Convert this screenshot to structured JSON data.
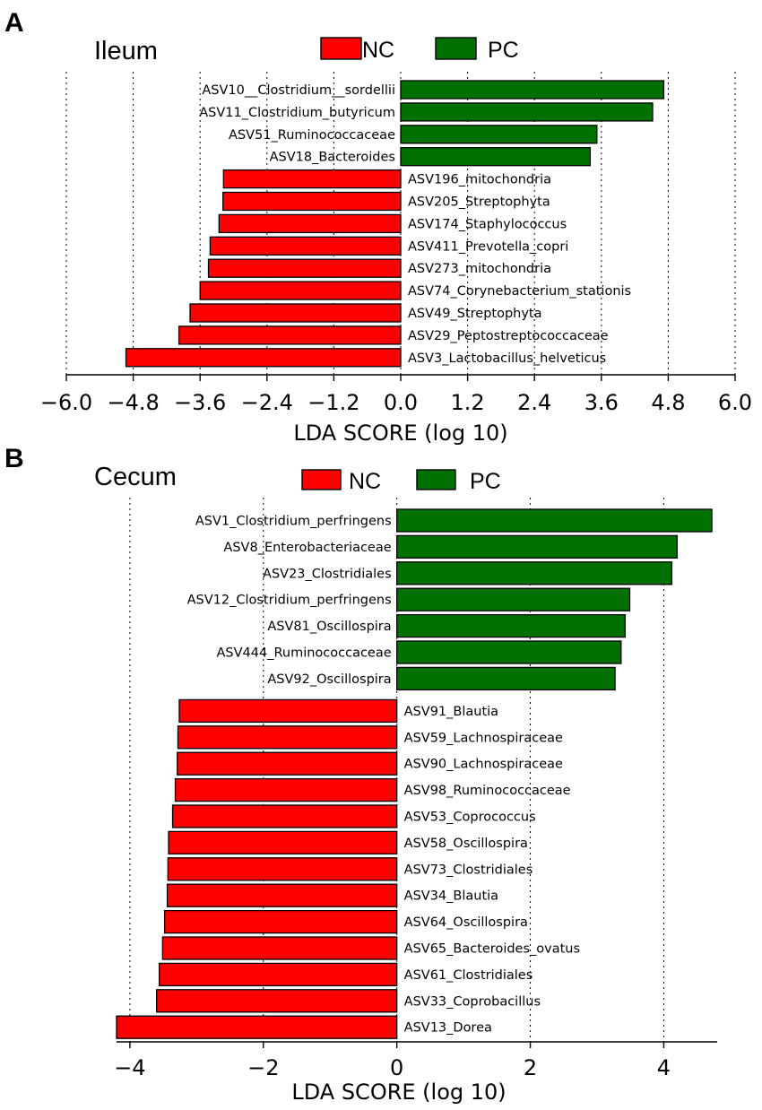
{
  "colors": {
    "NC": "#ff0000",
    "PC": "#007000"
  },
  "chart_data": [
    {
      "type": "bar",
      "panel": "A",
      "title": "Ileum",
      "orientation": "horizontal",
      "legend": [
        "NC",
        "PC"
      ],
      "xlabel": "LDA SCORE (log 10)",
      "xlim": [
        -6.0,
        6.0
      ],
      "xticks": [
        -6.0,
        -4.8,
        -3.6,
        -2.4,
        -1.2,
        0.0,
        1.2,
        2.4,
        3.6,
        4.8,
        6.0
      ],
      "xtick_labels": [
        "−6.0",
        "−4.8",
        "−3.6",
        "−2.4",
        "−1.2",
        "0.0",
        "1.2",
        "2.4",
        "3.6",
        "4.8",
        "6.0"
      ],
      "bars": [
        {
          "label": "ASV10__Clostridium__sordellii",
          "value": 4.72,
          "group": "PC"
        },
        {
          "label": "ASV11_Clostridium_butyricum",
          "value": 4.52,
          "group": "PC"
        },
        {
          "label": "ASV51_Ruminococcaceae",
          "value": 3.52,
          "group": "PC"
        },
        {
          "label": "ASV18_Bacteroides",
          "value": 3.4,
          "group": "PC"
        },
        {
          "label": "ASV196_mitochondria",
          "value": -3.18,
          "group": "NC"
        },
        {
          "label": "ASV205_Streptophyta",
          "value": -3.19,
          "group": "NC"
        },
        {
          "label": "ASV174_Staphylococcus",
          "value": -3.26,
          "group": "NC"
        },
        {
          "label": "ASV411_Prevotella_copri",
          "value": -3.42,
          "group": "NC"
        },
        {
          "label": "ASV273_mitochondria",
          "value": -3.45,
          "group": "NC"
        },
        {
          "label": "ASV74_Corynebacterium_stationis",
          "value": -3.6,
          "group": "NC"
        },
        {
          "label": "ASV49_Streptophyta",
          "value": -3.78,
          "group": "NC"
        },
        {
          "label": "ASV29_Peptostreptococcaceae",
          "value": -3.98,
          "group": "NC"
        },
        {
          "label": "ASV3_Lactobacillus_helveticus",
          "value": -4.93,
          "group": "NC"
        }
      ]
    },
    {
      "type": "bar",
      "panel": "B",
      "title": "Cecum",
      "orientation": "horizontal",
      "legend": [
        "NC",
        "PC"
      ],
      "xlabel": "LDA SCORE (log 10)",
      "xlim": [
        -4.2,
        4.8
      ],
      "xticks": [
        -4,
        -2,
        0,
        2,
        4
      ],
      "xtick_labels": [
        "−4",
        "−2",
        "0",
        "2",
        "4"
      ],
      "bars": [
        {
          "label": "ASV1_Clostridium_perfringens",
          "value": 4.72,
          "group": "PC"
        },
        {
          "label": "ASV8_Enterobacteriaceae",
          "value": 4.2,
          "group": "PC"
        },
        {
          "label": "ASV23_Clostridiales",
          "value": 4.12,
          "group": "PC"
        },
        {
          "label": "ASV12_Clostridium_perfringens",
          "value": 3.49,
          "group": "PC"
        },
        {
          "label": "ASV81_Oscillospira",
          "value": 3.42,
          "group": "PC"
        },
        {
          "label": "ASV444_Ruminococcaceae",
          "value": 3.36,
          "group": "PC"
        },
        {
          "label": "ASV92_Oscillospira",
          "value": 3.27,
          "group": "PC"
        },
        {
          "label": "ASV91_Blautia",
          "value": -3.26,
          "group": "NC"
        },
        {
          "label": "ASV59_Lachnospiraceae",
          "value": -3.28,
          "group": "NC"
        },
        {
          "label": "ASV90_Lachnospiraceae",
          "value": -3.29,
          "group": "NC"
        },
        {
          "label": "ASV98_Ruminococcaceae",
          "value": -3.32,
          "group": "NC"
        },
        {
          "label": "ASV53_Coprococcus",
          "value": -3.36,
          "group": "NC"
        },
        {
          "label": "ASV58_Oscillospira",
          "value": -3.42,
          "group": "NC"
        },
        {
          "label": "ASV73_Clostridiales",
          "value": -3.43,
          "group": "NC"
        },
        {
          "label": "ASV34_Blautia",
          "value": -3.44,
          "group": "NC"
        },
        {
          "label": "ASV64_Oscillospira",
          "value": -3.48,
          "group": "NC"
        },
        {
          "label": "ASV65_Bacteroides_ovatus",
          "value": -3.51,
          "group": "NC"
        },
        {
          "label": "ASV61_Clostridiales",
          "value": -3.56,
          "group": "NC"
        },
        {
          "label": "ASV33_Coprobacillus",
          "value": -3.6,
          "group": "NC"
        },
        {
          "label": "ASV13_Dorea",
          "value": -4.2,
          "group": "NC"
        }
      ]
    }
  ]
}
